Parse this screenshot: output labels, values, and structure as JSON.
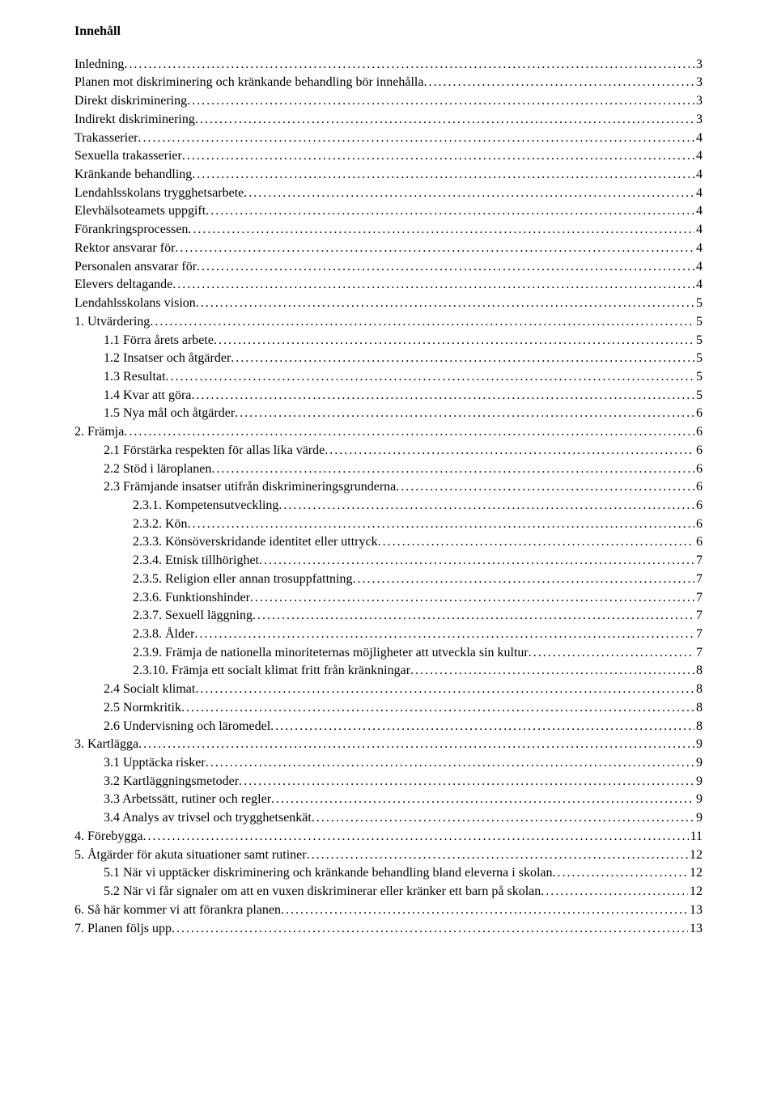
{
  "title": "Innehåll",
  "entries": [
    {
      "label": "Inledning",
      "page": "3",
      "level": 0
    },
    {
      "label": "Planen mot diskriminering och kränkande behandling bör innehålla",
      "page": "3",
      "level": 0
    },
    {
      "label": "Direkt diskriminering",
      "page": " 3",
      "level": 0
    },
    {
      "label": "Indirekt diskriminering ",
      "page": "3",
      "level": 0
    },
    {
      "label": "Trakasserier",
      "page": "4",
      "level": 0
    },
    {
      "label": "Sexuella trakasserier",
      "page": "4",
      "level": 0
    },
    {
      "label": "Kränkande behandling",
      "page": "4",
      "level": 0
    },
    {
      "label": "Lendahlsskolans trygghetsarbete",
      "page": "4",
      "level": 0
    },
    {
      "label": "Elevhälsoteamets uppgift",
      "page": "4",
      "level": 0
    },
    {
      "label": "Förankringsprocessen",
      "page": "4",
      "level": 0
    },
    {
      "label": "Rektor ansvarar för",
      "page": "4",
      "level": 0
    },
    {
      "label": "Personalen ansvarar för ",
      "page": "4",
      "level": 0
    },
    {
      "label": "Elevers deltagande",
      "page": "4",
      "level": 0
    },
    {
      "label": "Lendahlsskolans vision ",
      "page": "5",
      "level": 0
    },
    {
      "label": "1.  Utvärdering",
      "page": "5",
      "level": 0
    },
    {
      "label": "1.1 Förra årets arbete",
      "page": "5",
      "level": 1
    },
    {
      "label": "1.2 Insatser och åtgärder",
      "page": "5",
      "level": 1
    },
    {
      "label": "1.3 Resultat",
      "page": "5",
      "level": 1
    },
    {
      "label": "1.4 Kvar att göra",
      "page": "5",
      "level": 1
    },
    {
      "label": "1.5 Nya mål och åtgärder",
      "page": "6",
      "level": 1
    },
    {
      "label": "2.  Främja",
      "page": "6",
      "level": 0
    },
    {
      "label": "2.1 Förstärka respekten för allas lika värde",
      "page": "6",
      "level": 1
    },
    {
      "label": "2.2 Stöd i läroplanen",
      "page": "6",
      "level": 1
    },
    {
      "label": "2.3 Främjande insatser utifrån diskrimineringsgrunderna",
      "page": "6",
      "level": 1
    },
    {
      "label": "2.3.1.      Kompetensutveckling",
      "page": "6",
      "level": 2
    },
    {
      "label": "2.3.2.      Kön",
      "page": "6",
      "level": 2
    },
    {
      "label": "2.3.3.      Könsöverskridande identitet eller uttryck",
      "page": "6",
      "level": 2
    },
    {
      "label": "2.3.4.      Etnisk tillhörighet",
      "page": "7",
      "level": 2
    },
    {
      "label": "2.3.5.      Religion eller annan trosuppfattning",
      "page": "7",
      "level": 2
    },
    {
      "label": "2.3.6.      Funktionshinder",
      "page": "7",
      "level": 2
    },
    {
      "label": "2.3.7.      Sexuell läggning",
      "page": "7",
      "level": 2
    },
    {
      "label": "2.3.8.      Ålder ",
      "page": "7",
      "level": 2
    },
    {
      "label": "2.3.9.      Främja de nationella minoriteternas möjligheter att utveckla sin kultur",
      "page": "7",
      "level": 2
    },
    {
      "label": "2.3.10.    Främja ett socialt klimat fritt från kränkningar",
      "page": "8",
      "level": 2
    },
    {
      "label": "2.4 Socialt klimat",
      "page": "8",
      "level": 1
    },
    {
      "label": "2.5 Normkritik",
      "page": "8",
      "level": 1
    },
    {
      "label": "2.6 Undervisning och läromedel",
      "page": "8",
      "level": 1
    },
    {
      "label": "3.  Kartlägga",
      "page": "9",
      "level": 0
    },
    {
      "label": "3.1 Upptäcka risker",
      "page": "9",
      "level": 1
    },
    {
      "label": "3.2 Kartläggningsmetoder",
      "page": "9",
      "level": 1
    },
    {
      "label": "3.3 Arbetssätt, rutiner och regler",
      "page": "9",
      "level": 1
    },
    {
      "label": "3.4 Analys av trivsel och trygghetsenkät",
      "page": "9",
      "level": 1
    },
    {
      "label": "4.  Förebygga",
      "page": "11",
      "level": 0
    },
    {
      "label": "5.  Åtgärder för akuta situationer samt rutiner",
      "page": "12",
      "level": 0
    },
    {
      "label": "5.1 När vi upptäcker diskriminering och kränkande behandling bland eleverna i skolan",
      "page": "12",
      "level": 1
    },
    {
      "label": "5.2 När vi får signaler om att en vuxen diskriminerar eller kränker ett barn på skolan",
      "page": "12",
      "level": 1
    },
    {
      "label": "6.  Så här kommer vi att förankra planen",
      "page": "13",
      "level": 0
    },
    {
      "label": "7.  Planen följs upp ",
      "page": " 13",
      "level": 0
    }
  ]
}
